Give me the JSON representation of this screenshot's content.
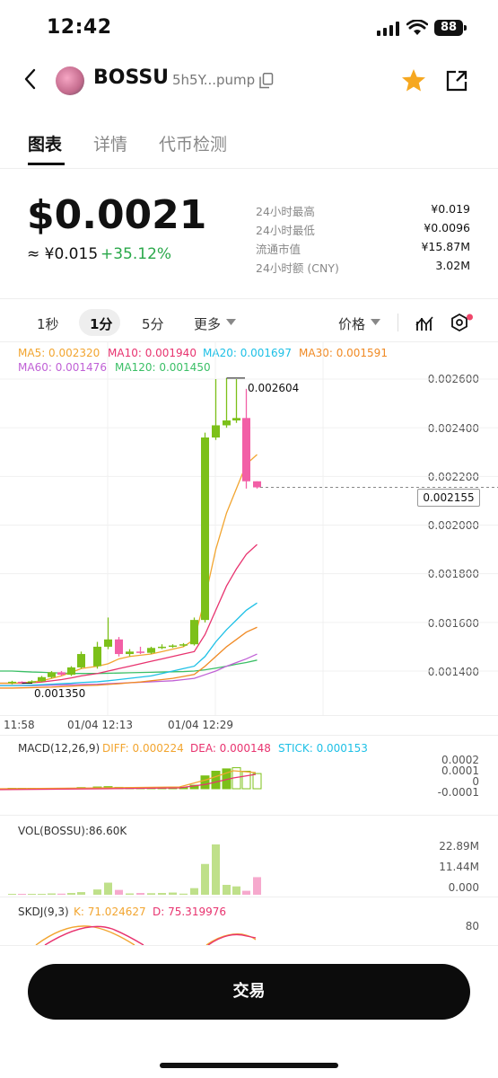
{
  "status": {
    "time": "12:42",
    "battery": "88"
  },
  "header": {
    "symbol": "BOSSU",
    "address": "5h5Y...pump"
  },
  "tabs": [
    "图表",
    "详情",
    "代币检测"
  ],
  "price": {
    "usd": "$0.0021",
    "cny": "≈ ¥0.015",
    "change": "+35.12%"
  },
  "stats": [
    {
      "label": "24小时最高",
      "value": "¥0.019"
    },
    {
      "label": "24小时最低",
      "value": "¥0.0096"
    },
    {
      "label": "流通市值",
      "value": "¥15.87M"
    },
    {
      "label": "24小时额 (CNY)",
      "value": "3.02M"
    }
  ],
  "timeframes": [
    "1秒",
    "1分",
    "5分",
    "更多"
  ],
  "price_menu": "价格",
  "ma": {
    "ma5": "MA5: 0.002320",
    "ma10": "MA10: 0.001940",
    "ma20": "MA20: 0.001697",
    "ma30": "MA30: 0.001591",
    "ma60": "MA60: 0.001476",
    "ma120": "MA120: 0.001450"
  },
  "price_axis": [
    "0.002600",
    "0.002400",
    "0.002200",
    "0.002000",
    "0.001800",
    "0.001600",
    "0.001400"
  ],
  "current_price_tag": "0.002155",
  "high_label": "0.002604",
  "low_label": "0.001350",
  "time_axis": [
    "11:58",
    "01/04 12:13",
    "01/04 12:29"
  ],
  "macd": {
    "title": "MACD(12,26,9)",
    "diff": "DIFF: 0.000224",
    "dea": "DEA: 0.000148",
    "stick": "STICK: 0.000153",
    "axis": [
      "0.0002",
      "0.0001",
      "0",
      "-0.0001"
    ]
  },
  "vol": {
    "title": "VOL(BOSSU):86.60K",
    "axis": [
      "22.89M",
      "11.44M",
      "0.000"
    ]
  },
  "skdj": {
    "title": "SKDJ(9,3)",
    "k": "K: 71.024627",
    "d": "D: 75.319976",
    "axis": "80"
  },
  "trade_button": "交易",
  "colors": {
    "up": "#7cc019",
    "down": "#f25fa6",
    "ma5": "#f2a530",
    "ma10": "#e8336f",
    "ma20": "#1ec0e6",
    "ma30": "#f08a24",
    "ma60": "#c061d6",
    "ma120": "#3bbf66"
  },
  "chart_data": {
    "type": "candlestick",
    "candles": [
      {
        "o": 0.001352,
        "h": 0.00136,
        "l": 0.001345,
        "c": 0.001356
      },
      {
        "o": 0.001356,
        "h": 0.001358,
        "l": 0.00135,
        "c": 0.001353
      },
      {
        "o": 0.001353,
        "h": 0.001362,
        "l": 0.00135,
        "c": 0.001358
      },
      {
        "o": 0.001358,
        "h": 0.00138,
        "l": 0.001355,
        "c": 0.001375
      },
      {
        "o": 0.001375,
        "h": 0.0014,
        "l": 0.00137,
        "c": 0.001395
      },
      {
        "o": 0.001395,
        "h": 0.0014,
        "l": 0.00138,
        "c": 0.001385
      },
      {
        "o": 0.001385,
        "h": 0.00142,
        "l": 0.00138,
        "c": 0.001415
      },
      {
        "o": 0.001415,
        "h": 0.00148,
        "l": 0.00141,
        "c": 0.00147
      },
      {
        "o": 0.00142,
        "h": 0.00152,
        "l": 0.00141,
        "c": 0.0015
      },
      {
        "o": 0.0015,
        "h": 0.00162,
        "l": 0.00149,
        "c": 0.00153
      },
      {
        "o": 0.00153,
        "h": 0.00154,
        "l": 0.00146,
        "c": 0.00147
      },
      {
        "o": 0.00147,
        "h": 0.00149,
        "l": 0.00146,
        "c": 0.00148
      },
      {
        "o": 0.00148,
        "h": 0.0015,
        "l": 0.00147,
        "c": 0.001475
      },
      {
        "o": 0.001475,
        "h": 0.0015,
        "l": 0.00147,
        "c": 0.001495
      },
      {
        "o": 0.001495,
        "h": 0.00151,
        "l": 0.00149,
        "c": 0.0015
      },
      {
        "o": 0.0015,
        "h": 0.00151,
        "l": 0.001495,
        "c": 0.001505
      },
      {
        "o": 0.001505,
        "h": 0.001515,
        "l": 0.0015,
        "c": 0.00151
      },
      {
        "o": 0.00151,
        "h": 0.00162,
        "l": 0.001505,
        "c": 0.00161
      },
      {
        "o": 0.00161,
        "h": 0.00238,
        "l": 0.0016,
        "c": 0.00236
      },
      {
        "o": 0.00236,
        "h": 0.0026,
        "l": 0.00235,
        "c": 0.00241
      },
      {
        "o": 0.00241,
        "h": 0.002604,
        "l": 0.0024,
        "c": 0.00243
      },
      {
        "o": 0.00243,
        "h": 0.0026,
        "l": 0.00242,
        "c": 0.00244
      },
      {
        "o": 0.00244,
        "h": 0.00256,
        "l": 0.00215,
        "c": 0.00218
      },
      {
        "o": 0.00218,
        "h": 0.00218,
        "l": 0.00215,
        "c": 0.002155
      }
    ],
    "ma5": [
      0.00135,
      0.001352,
      0.001355,
      0.00136,
      0.00137,
      0.00138,
      0.001395,
      0.00141,
      0.00142,
      0.00143,
      0.00145,
      0.00146,
      0.001465,
      0.00147,
      0.00148,
      0.00149,
      0.0015,
      0.00153,
      0.0017,
      0.0019,
      0.00205,
      0.00215,
      0.00225,
      0.00229
    ],
    "ma10": [
      0.00135,
      0.00135,
      0.001352,
      0.001355,
      0.00136,
      0.001365,
      0.001372,
      0.00138,
      0.00139,
      0.0014,
      0.00141,
      0.00142,
      0.00143,
      0.00144,
      0.00145,
      0.00146,
      0.00147,
      0.00148,
      0.00155,
      0.00165,
      0.00175,
      0.00182,
      0.00188,
      0.00192
    ],
    "ma20": [
      0.00134,
      0.001341,
      0.001342,
      0.001344,
      0.001346,
      0.001348,
      0.00135,
      0.001353,
      0.001356,
      0.00136,
      0.001365,
      0.00137,
      0.001375,
      0.00138,
      0.00139,
      0.0014,
      0.00141,
      0.00142,
      0.00146,
      0.00152,
      0.00157,
      0.00161,
      0.00165,
      0.00168
    ],
    "ma30": [
      0.00133,
      0.001331,
      0.001332,
      0.001333,
      0.001334,
      0.001336,
      0.001338,
      0.00134,
      0.001342,
      0.001345,
      0.001348,
      0.001352,
      0.001355,
      0.00136,
      0.001365,
      0.00137,
      0.001378,
      0.001386,
      0.00142,
      0.00146,
      0.0015,
      0.00153,
      0.00156,
      0.00158
    ],
    "ma60": [
      0.00134,
      0.00134,
      0.00134,
      0.001341,
      0.001342,
      0.001343,
      0.001344,
      0.001345,
      0.001346,
      0.001348,
      0.00135,
      0.001352,
      0.001354,
      0.001356,
      0.001358,
      0.00136,
      0.001365,
      0.00137,
      0.001385,
      0.0014,
      0.00142,
      0.001435,
      0.00145,
      0.00147
    ],
    "ma120": [
      0.0014,
      0.001398,
      0.001396,
      0.001395,
      0.001393,
      0.001392,
      0.00139,
      0.00139,
      0.00139,
      0.001391,
      0.001392,
      0.001393,
      0.001394,
      0.001395,
      0.001396,
      0.001397,
      0.001398,
      0.0014,
      0.001405,
      0.001412,
      0.00142,
      0.001428,
      0.001435,
      0.001445
    ],
    "macd_stick": [
      0,
      0,
      0,
      0.0,
      2e-06,
      2e-06,
      4e-06,
      1e-05,
      1.5e-05,
      1.8e-05,
      1.2e-05,
      1e-05,
      9e-06,
      1e-05,
      1e-05,
      1.1e-05,
      1.2e-05,
      3e-05,
      0.00011,
      0.00015,
      0.00017,
      0.00018,
      0.00015,
      0.00013
    ],
    "volume": [
      0.3,
      0.3,
      0.2,
      0.4,
      0.6,
      0.5,
      0.8,
      1.2,
      2.4,
      5.5,
      2.2,
      0.6,
      0.8,
      0.7,
      0.8,
      1.0,
      0.5,
      3.0,
      14.0,
      22.89,
      4.5,
      3.8,
      1.8,
      8.0
    ],
    "y_range": [
      0.0013,
      0.0027
    ]
  }
}
